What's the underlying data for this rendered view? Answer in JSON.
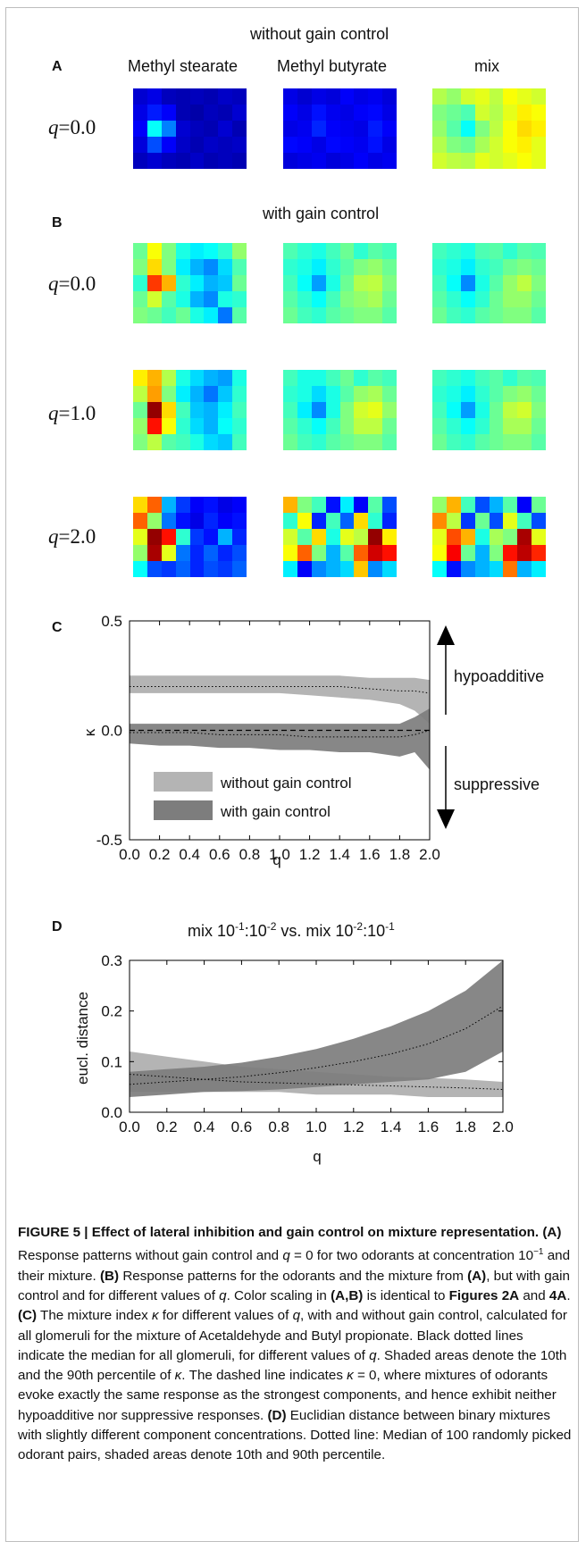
{
  "panelA": {
    "letter": "A",
    "heading": "without gain control",
    "columns": [
      "Methyl stearate",
      "Methyl butyrate",
      "mix"
    ],
    "rows": [
      {
        "q_label_prefix": "q",
        "q_label_value": "=0.0"
      }
    ]
  },
  "panelB": {
    "letter": "B",
    "heading": "with gain control",
    "rows": [
      {
        "q_label_prefix": "q",
        "q_label_value": "=0.0"
      },
      {
        "q_label_prefix": "q",
        "q_label_value": "=1.0"
      },
      {
        "q_label_prefix": "q",
        "q_label_value": "=2.0"
      }
    ]
  },
  "colormap": "jet",
  "heatmaps": {
    "A_q0": [
      [
        [
          0.08,
          0.1,
          0.06,
          0.05,
          0.06,
          0.05,
          0.07,
          0.06
        ],
        [
          0.1,
          0.15,
          0.12,
          0.05,
          0.04,
          0.06,
          0.05,
          0.08
        ],
        [
          0.12,
          0.38,
          0.25,
          0.08,
          0.06,
          0.05,
          0.08,
          0.05
        ],
        [
          0.09,
          0.2,
          0.12,
          0.07,
          0.05,
          0.07,
          0.06,
          0.07
        ],
        [
          0.06,
          0.08,
          0.06,
          0.05,
          0.07,
          0.05,
          0.06,
          0.05
        ]
      ],
      [
        [
          0.1,
          0.08,
          0.1,
          0.09,
          0.12,
          0.1,
          0.11,
          0.09
        ],
        [
          0.12,
          0.1,
          0.14,
          0.11,
          0.1,
          0.12,
          0.13,
          0.1
        ],
        [
          0.1,
          0.11,
          0.16,
          0.12,
          0.11,
          0.1,
          0.15,
          0.12
        ],
        [
          0.13,
          0.12,
          0.1,
          0.13,
          0.12,
          0.11,
          0.14,
          0.1
        ],
        [
          0.09,
          0.1,
          0.11,
          0.09,
          0.1,
          0.12,
          0.1,
          0.11
        ]
      ],
      [
        [
          0.55,
          0.52,
          0.58,
          0.6,
          0.56,
          0.62,
          0.6,
          0.58
        ],
        [
          0.5,
          0.48,
          0.45,
          0.58,
          0.55,
          0.6,
          0.64,
          0.62
        ],
        [
          0.52,
          0.46,
          0.38,
          0.5,
          0.56,
          0.62,
          0.66,
          0.64
        ],
        [
          0.55,
          0.5,
          0.48,
          0.54,
          0.58,
          0.62,
          0.64,
          0.6
        ],
        [
          0.58,
          0.56,
          0.55,
          0.6,
          0.58,
          0.6,
          0.62,
          0.6
        ]
      ]
    ],
    "B_q0": [
      [
        [
          0.48,
          0.62,
          0.5,
          0.4,
          0.36,
          0.38,
          0.42,
          0.52
        ],
        [
          0.5,
          0.66,
          0.5,
          0.36,
          0.3,
          0.26,
          0.34,
          0.45
        ],
        [
          0.42,
          0.82,
          0.7,
          0.42,
          0.36,
          0.3,
          0.32,
          0.48
        ],
        [
          0.48,
          0.58,
          0.46,
          0.4,
          0.3,
          0.26,
          0.4,
          0.42
        ],
        [
          0.5,
          0.48,
          0.44,
          0.48,
          0.4,
          0.36,
          0.24,
          0.46
        ]
      ],
      [
        [
          0.45,
          0.42,
          0.4,
          0.44,
          0.48,
          0.42,
          0.46,
          0.44
        ],
        [
          0.42,
          0.4,
          0.36,
          0.42,
          0.46,
          0.5,
          0.52,
          0.48
        ],
        [
          0.44,
          0.38,
          0.28,
          0.4,
          0.48,
          0.55,
          0.56,
          0.5
        ],
        [
          0.46,
          0.42,
          0.38,
          0.44,
          0.5,
          0.52,
          0.54,
          0.48
        ],
        [
          0.48,
          0.44,
          0.42,
          0.46,
          0.48,
          0.5,
          0.5,
          0.46
        ]
      ],
      [
        [
          0.44,
          0.42,
          0.4,
          0.45,
          0.46,
          0.42,
          0.46,
          0.45
        ],
        [
          0.42,
          0.4,
          0.36,
          0.42,
          0.44,
          0.48,
          0.5,
          0.48
        ],
        [
          0.44,
          0.38,
          0.26,
          0.4,
          0.46,
          0.52,
          0.56,
          0.5
        ],
        [
          0.46,
          0.42,
          0.38,
          0.42,
          0.48,
          0.52,
          0.52,
          0.48
        ],
        [
          0.48,
          0.44,
          0.42,
          0.46,
          0.48,
          0.5,
          0.5,
          0.46
        ]
      ]
    ],
    "B_q1": [
      [
        [
          0.64,
          0.7,
          0.55,
          0.4,
          0.34,
          0.3,
          0.28,
          0.4
        ],
        [
          0.56,
          0.72,
          0.5,
          0.36,
          0.3,
          0.24,
          0.32,
          0.42
        ],
        [
          0.48,
          0.98,
          0.66,
          0.44,
          0.32,
          0.3,
          0.36,
          0.44
        ],
        [
          0.52,
          0.86,
          0.62,
          0.42,
          0.34,
          0.3,
          0.38,
          0.42
        ],
        [
          0.5,
          0.56,
          0.46,
          0.44,
          0.4,
          0.34,
          0.32,
          0.44
        ]
      ],
      [
        [
          0.44,
          0.4,
          0.4,
          0.44,
          0.48,
          0.42,
          0.46,
          0.44
        ],
        [
          0.42,
          0.4,
          0.34,
          0.4,
          0.46,
          0.52,
          0.54,
          0.48
        ],
        [
          0.44,
          0.36,
          0.26,
          0.4,
          0.5,
          0.58,
          0.6,
          0.52
        ],
        [
          0.46,
          0.42,
          0.38,
          0.44,
          0.5,
          0.56,
          0.56,
          0.48
        ],
        [
          0.48,
          0.44,
          0.42,
          0.46,
          0.48,
          0.5,
          0.5,
          0.46
        ]
      ],
      [
        [
          0.44,
          0.42,
          0.4,
          0.44,
          0.46,
          0.42,
          0.46,
          0.45
        ],
        [
          0.42,
          0.4,
          0.36,
          0.42,
          0.46,
          0.5,
          0.52,
          0.48
        ],
        [
          0.44,
          0.38,
          0.28,
          0.4,
          0.48,
          0.56,
          0.58,
          0.5
        ],
        [
          0.46,
          0.42,
          0.38,
          0.42,
          0.48,
          0.54,
          0.54,
          0.48
        ],
        [
          0.48,
          0.44,
          0.42,
          0.46,
          0.48,
          0.5,
          0.5,
          0.46
        ]
      ]
    ],
    "B_q2": [
      [
        [
          0.66,
          0.78,
          0.3,
          0.18,
          0.12,
          0.14,
          0.1,
          0.12
        ],
        [
          0.78,
          0.52,
          0.24,
          0.14,
          0.1,
          0.16,
          0.12,
          0.14
        ],
        [
          0.6,
          0.98,
          0.86,
          0.42,
          0.18,
          0.14,
          0.3,
          0.16
        ],
        [
          0.52,
          0.96,
          0.6,
          0.24,
          0.16,
          0.22,
          0.16,
          0.2
        ],
        [
          0.38,
          0.2,
          0.18,
          0.22,
          0.16,
          0.2,
          0.18,
          0.22
        ]
      ],
      [
        [
          0.7,
          0.5,
          0.44,
          0.14,
          0.36,
          0.12,
          0.46,
          0.2
        ],
        [
          0.42,
          0.62,
          0.16,
          0.44,
          0.22,
          0.66,
          0.42,
          0.16
        ],
        [
          0.58,
          0.46,
          0.66,
          0.4,
          0.6,
          0.56,
          0.98,
          0.64
        ],
        [
          0.62,
          0.78,
          0.5,
          0.3,
          0.46,
          0.78,
          0.92,
          0.86
        ],
        [
          0.36,
          0.12,
          0.26,
          0.3,
          0.34,
          0.68,
          0.26,
          0.34
        ]
      ],
      [
        [
          0.52,
          0.7,
          0.44,
          0.2,
          0.3,
          0.46,
          0.12,
          0.48
        ],
        [
          0.74,
          0.56,
          0.18,
          0.48,
          0.2,
          0.6,
          0.44,
          0.2
        ],
        [
          0.6,
          0.8,
          0.7,
          0.4,
          0.54,
          0.5,
          0.96,
          0.6
        ],
        [
          0.62,
          0.88,
          0.48,
          0.3,
          0.5,
          0.86,
          0.94,
          0.84
        ],
        [
          0.38,
          0.14,
          0.26,
          0.3,
          0.34,
          0.76,
          0.3,
          0.36
        ]
      ]
    ]
  },
  "panelC": {
    "letter": "C",
    "chart_data": {
      "type": "area",
      "title": "",
      "xlabel": "q",
      "ylabel": "κ",
      "xlim": [
        0.0,
        2.0
      ],
      "ylim": [
        -0.5,
        0.5
      ],
      "xticks": [
        "0.0",
        "0.2",
        "0.4",
        "0.6",
        "0.8",
        "1.0",
        "1.2",
        "1.4",
        "1.6",
        "1.8",
        "2.0"
      ],
      "yticks": [
        "0.5",
        "0.0",
        "-0.5"
      ],
      "hline_dashed": 0.0,
      "series": [
        {
          "name": "without gain control",
          "color": "#b4b4b4",
          "x": [
            0.0,
            0.2,
            0.4,
            0.6,
            0.8,
            1.0,
            1.2,
            1.4,
            1.6,
            1.8,
            1.9,
            2.0
          ],
          "p10": [
            0.17,
            0.17,
            0.17,
            0.17,
            0.17,
            0.17,
            0.16,
            0.15,
            0.14,
            0.12,
            0.09,
            0.03
          ],
          "median": [
            0.2,
            0.2,
            0.2,
            0.2,
            0.2,
            0.2,
            0.2,
            0.2,
            0.19,
            0.18,
            0.18,
            0.17
          ],
          "p90": [
            0.25,
            0.25,
            0.25,
            0.25,
            0.25,
            0.25,
            0.25,
            0.25,
            0.24,
            0.24,
            0.24,
            0.23
          ]
        },
        {
          "name": "with gain control",
          "color": "#7d7d7d",
          "x": [
            0.0,
            0.2,
            0.4,
            0.6,
            0.8,
            1.0,
            1.2,
            1.4,
            1.6,
            1.8,
            1.9,
            2.0
          ],
          "p10": [
            -0.06,
            -0.07,
            -0.07,
            -0.08,
            -0.08,
            -0.09,
            -0.09,
            -0.1,
            -0.1,
            -0.12,
            -0.1,
            -0.18
          ],
          "median": [
            -0.01,
            -0.01,
            -0.01,
            -0.02,
            -0.02,
            -0.02,
            -0.03,
            -0.03,
            -0.03,
            -0.03,
            -0.02,
            0.0
          ],
          "p90": [
            0.03,
            0.03,
            0.03,
            0.03,
            0.03,
            0.03,
            0.03,
            0.03,
            0.03,
            0.03,
            0.06,
            0.1
          ]
        }
      ],
      "annotations": {
        "up": "hypoadditive",
        "down": "suppressive"
      }
    }
  },
  "panelD": {
    "letter": "D",
    "title_a": "mix 10",
    "title_a_sup": "-1",
    "title_b": ":10",
    "title_b_sup": "-2",
    "title_c": " vs. mix 10",
    "title_c_sup": "-2",
    "title_d": ":10",
    "title_d_sup": "-1",
    "chart_data": {
      "type": "area",
      "xlabel": "q",
      "ylabel": "eucl. distance",
      "xlim": [
        0.0,
        2.0
      ],
      "ylim": [
        0.0,
        0.3
      ],
      "xticks": [
        "0.0",
        "0.2",
        "0.4",
        "0.6",
        "0.8",
        "1.0",
        "1.2",
        "1.4",
        "1.6",
        "1.8",
        "2.0"
      ],
      "yticks": [
        "0.3",
        "0.2",
        "0.1",
        "0.0"
      ],
      "series": [
        {
          "color": "#b4b4b4",
          "x": [
            0.0,
            0.2,
            0.4,
            0.6,
            0.8,
            1.0,
            1.2,
            1.4,
            1.6,
            1.8,
            2.0
          ],
          "p10": [
            0.04,
            0.04,
            0.04,
            0.04,
            0.04,
            0.035,
            0.035,
            0.035,
            0.03,
            0.03,
            0.03
          ],
          "median": [
            0.075,
            0.07,
            0.065,
            0.06,
            0.058,
            0.056,
            0.054,
            0.052,
            0.05,
            0.048,
            0.045
          ],
          "p90": [
            0.12,
            0.11,
            0.1,
            0.09,
            0.085,
            0.08,
            0.075,
            0.07,
            0.068,
            0.065,
            0.06
          ]
        },
        {
          "color": "#7d7d7d",
          "x": [
            0.0,
            0.2,
            0.4,
            0.6,
            0.8,
            1.0,
            1.2,
            1.4,
            1.6,
            1.8,
            2.0
          ],
          "p10": [
            0.03,
            0.035,
            0.04,
            0.042,
            0.045,
            0.05,
            0.055,
            0.06,
            0.065,
            0.08,
            0.12
          ],
          "median": [
            0.055,
            0.06,
            0.065,
            0.07,
            0.078,
            0.088,
            0.1,
            0.115,
            0.135,
            0.165,
            0.21
          ],
          "p90": [
            0.08,
            0.085,
            0.09,
            0.098,
            0.11,
            0.125,
            0.145,
            0.17,
            0.2,
            0.24,
            0.3
          ]
        }
      ]
    }
  },
  "caption": {
    "fig": "FIGURE 5 | Effect of lateral inhibition and gain control on mixture representation.",
    "A_tag": "(A)",
    "A_text": " Response patterns without gain control and ",
    "A_q": "q",
    "A_text2": " = 0 for two odorants at concentration 10",
    "A_sup": "−1",
    "A_text3": " and their mixture. ",
    "B_tag": "(B)",
    "B_text": " Response patterns for the odorants and the mixture from ",
    "B_ref": "(A)",
    "B_text2": ", but with gain control and for different values of ",
    "B_q": "q",
    "B_text3": ". Color scaling in ",
    "B_ref2": "(A,B)",
    "B_text4": " is identical to ",
    "B_fig": "Figures 2A",
    "B_and": " and ",
    "B_fig2": "4A",
    "B_end": ". ",
    "C_tag": "(C)",
    "C_text": " The mixture index ",
    "C_kappa": "κ",
    "C_text2": " for different values of ",
    "C_q": "q",
    "C_text3": ", with and without gain control, calculated for all glomeruli for the mixture of Acetaldehyde and Butyl propionate. Black dotted lines indicate the median for all glomeruli, for different values of ",
    "C_q2": "q",
    "C_text4": ". Shaded areas denote the 10th and the 90th percentile of ",
    "C_kappa2": "κ",
    "C_text5": ". The dashed line indicates ",
    "C_kappa3": "κ",
    "C_text6": " = 0, where mixtures of odorants evoke exactly the same response as the strongest components, and hence exhibit neither hypoadditive nor suppressive responses. ",
    "D_tag": "(D)",
    "D_text": " Euclidian distance between binary mixtures with slightly different component concentrations. Dotted line: Median of 100 randomly picked odorant pairs, shaded areas denote 10th and 90th percentile."
  }
}
